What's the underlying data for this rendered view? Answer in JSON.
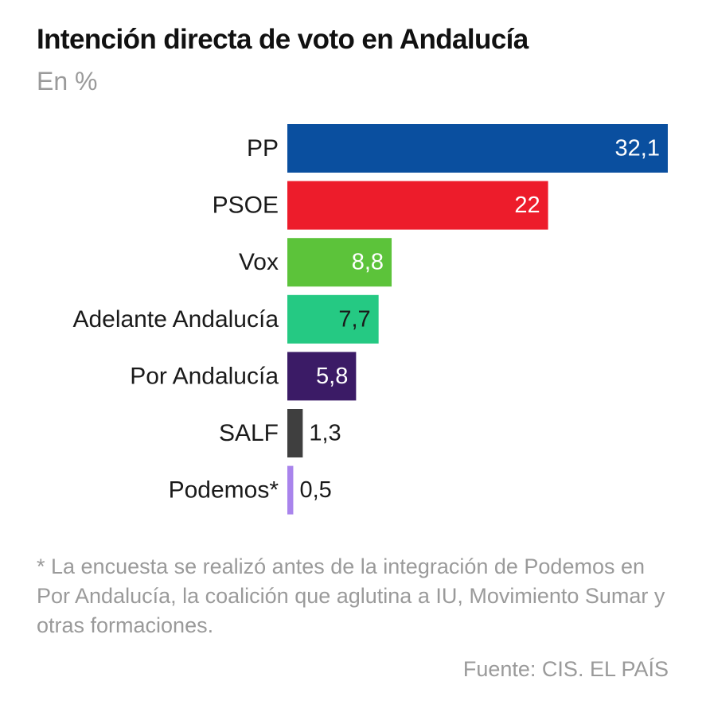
{
  "header": {
    "title": "Intención directa de voto en Andalucía",
    "subtitle": "En %"
  },
  "chart_data": {
    "type": "bar",
    "orientation": "horizontal",
    "title": "Intención directa de voto en Andalucía",
    "subtitle": "En %",
    "categories": [
      "PP",
      "PSOE",
      "Vox",
      "Adelante Andalucía",
      "Por Andalucía",
      "SALF",
      "Podemos*"
    ],
    "values": [
      32.1,
      22,
      8.8,
      7.7,
      5.8,
      1.3,
      0.5
    ],
    "value_labels": [
      "32,1",
      "22",
      "8,8",
      "7,7",
      "5,8",
      "1,3",
      "0,5"
    ],
    "colors": [
      "#0a4f9f",
      "#ed1c2b",
      "#5cc33a",
      "#25c983",
      "#3b1b66",
      "#3f3f3f",
      "#a984ec"
    ],
    "label_colors": [
      "#ffffff",
      "#ffffff",
      "#ffffff",
      "#1a1a1a",
      "#ffffff",
      "#1a1a1a",
      "#1a1a1a"
    ],
    "xlim": [
      0,
      32.1
    ],
    "grid": false,
    "legend": "none"
  },
  "footer": {
    "note": "* La encuesta se realizó antes de la integración de Podemos en Por Andalucía, la coalición que aglutina a IU, Movimiento Sumar y otras formaciones.",
    "source": "Fuente: CIS. EL PAÍS"
  }
}
